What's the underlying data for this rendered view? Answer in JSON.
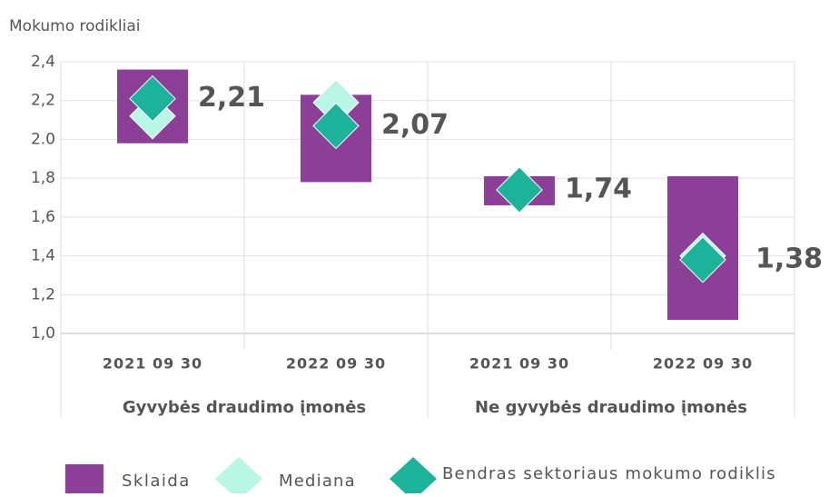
{
  "chart_data": {
    "type": "range-diamond",
    "y_axis_label": "Mokumo rodikliai",
    "categories": [
      "2021 09 30",
      "2022 09 30",
      "2021 09 30",
      "2022 09 30"
    ],
    "groups": [
      "Gyvybės draudimo įmonės",
      "Ne gyvybės draudimo įmonės"
    ],
    "ylim": [
      1.0,
      2.4
    ],
    "yticks": [
      {
        "value": 1.0,
        "label": "1,0"
      },
      {
        "value": 1.2,
        "label": "1,2"
      },
      {
        "value": 1.4,
        "label": "1,4"
      },
      {
        "value": 1.6,
        "label": "1,6"
      },
      {
        "value": 1.8,
        "label": "1,8"
      },
      {
        "value": 2.0,
        "label": "2.0"
      },
      {
        "value": 2.2,
        "label": "2,2"
      },
      {
        "value": 2.4,
        "label": "2,4"
      }
    ],
    "grid": true,
    "range": {
      "name": "Sklaida",
      "color": "#8b3f96",
      "low": [
        1.98,
        1.78,
        1.66,
        1.07
      ],
      "high": [
        2.36,
        2.23,
        1.81,
        1.81
      ]
    },
    "series": [
      {
        "name": "Mediana",
        "color": "#b9f6e5",
        "values": [
          2.12,
          2.19,
          1.74,
          1.4
        ]
      },
      {
        "name": "Bendras sektoriaus mokumo rodiklis",
        "color": "#1cb39a",
        "values": [
          2.21,
          2.07,
          1.74,
          1.38
        ],
        "value_labels": [
          "2,21",
          "2,07",
          "1,74",
          "1,38"
        ]
      }
    ]
  }
}
